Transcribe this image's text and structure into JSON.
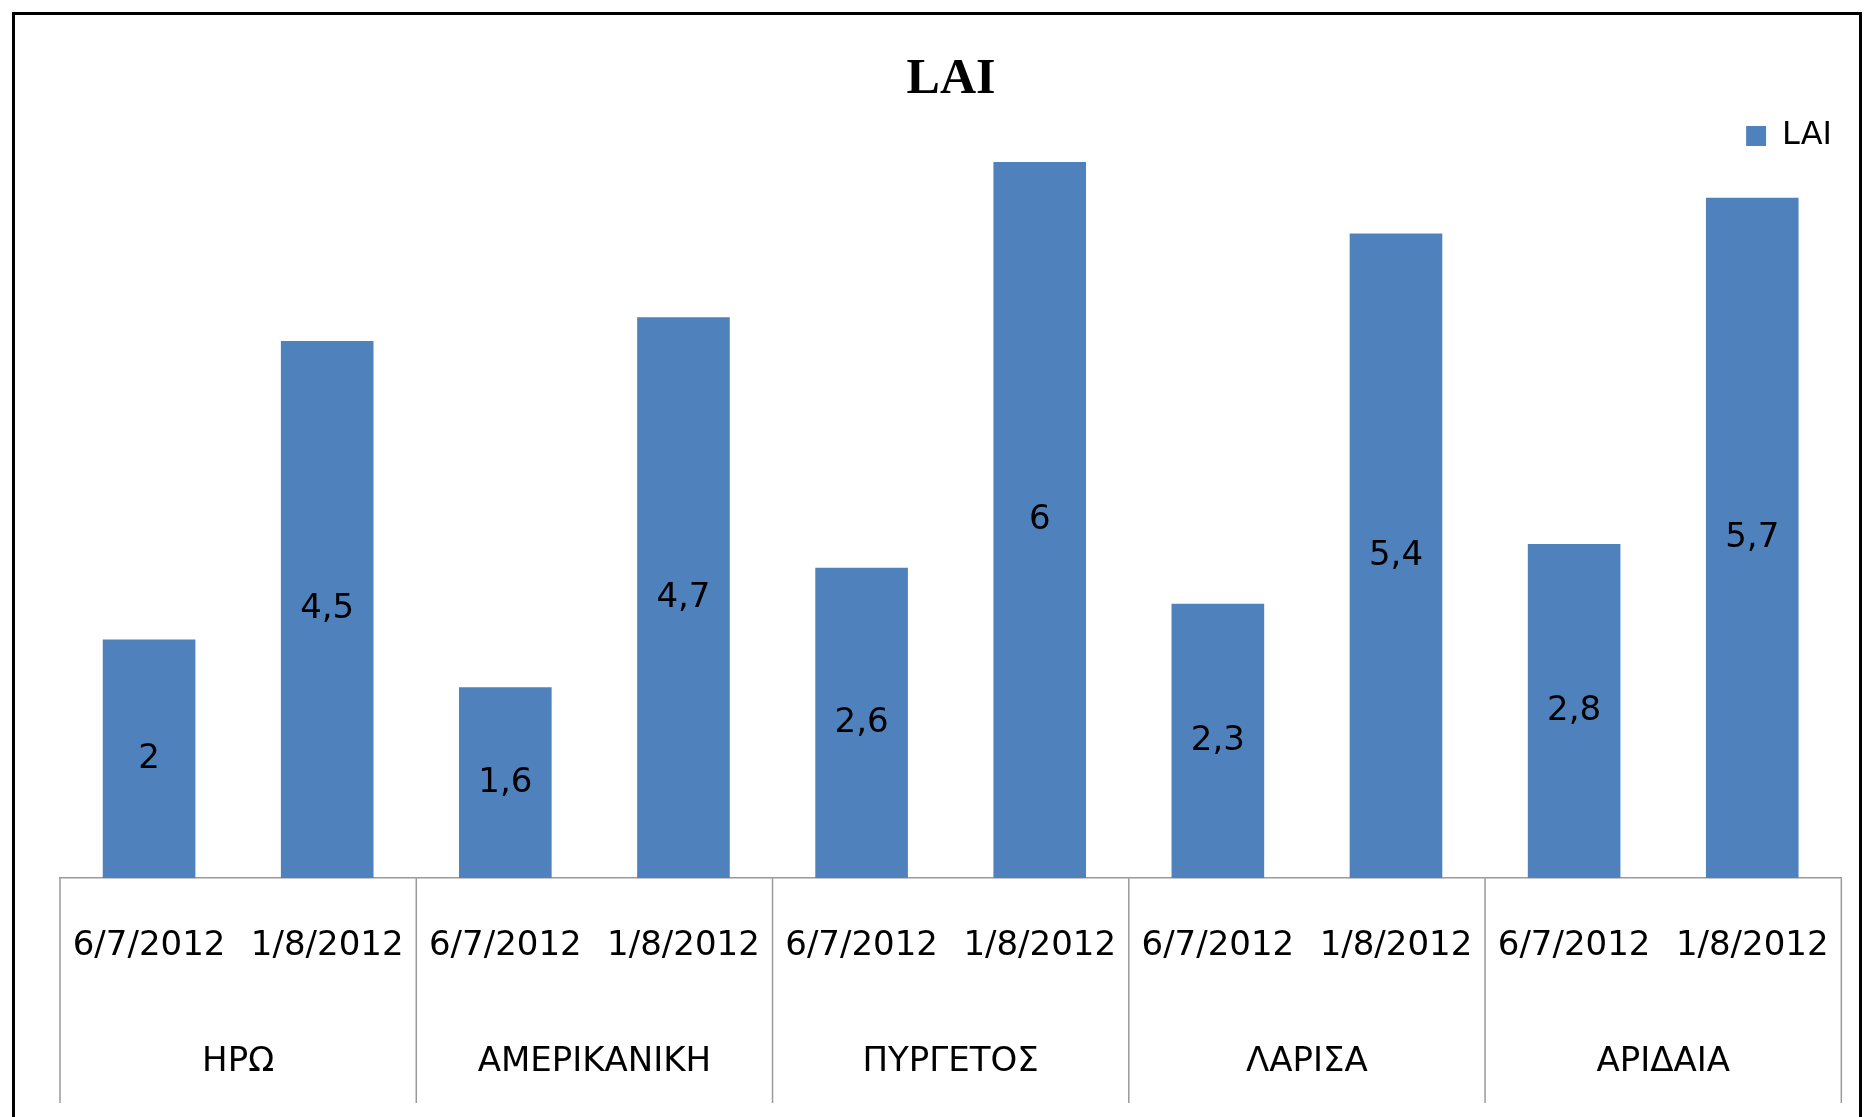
{
  "chart_data": {
    "type": "bar",
    "title": "LAI",
    "categories": [
      "6/7/2012",
      "1/8/2012",
      "6/7/2012",
      "1/8/2012",
      "6/7/2012",
      "1/8/2012",
      "6/7/2012",
      "1/8/2012",
      "6/7/2012",
      "1/8/2012"
    ],
    "annotations": [
      "ΗΡΩ",
      "ΑΜΕΡΙΚΑΝΙΚΗ",
      "ΠΥΡΓΕΤΟΣ",
      "ΛΑΡΙΣΑ",
      "ΑΡΙΔΑΙΑ"
    ],
    "series": [
      {
        "name": "LAI",
        "color": "#4f81bd",
        "values": [
          2,
          4.5,
          1.6,
          4.7,
          2.6,
          6,
          2.3,
          5.4,
          2.8,
          5.7
        ],
        "value_labels": [
          "2",
          "4,5",
          "1,6",
          "4,7",
          "2,6",
          "6",
          "2,3",
          "5,4",
          "2,8",
          "5,7"
        ]
      }
    ],
    "legend": "top right"
  }
}
